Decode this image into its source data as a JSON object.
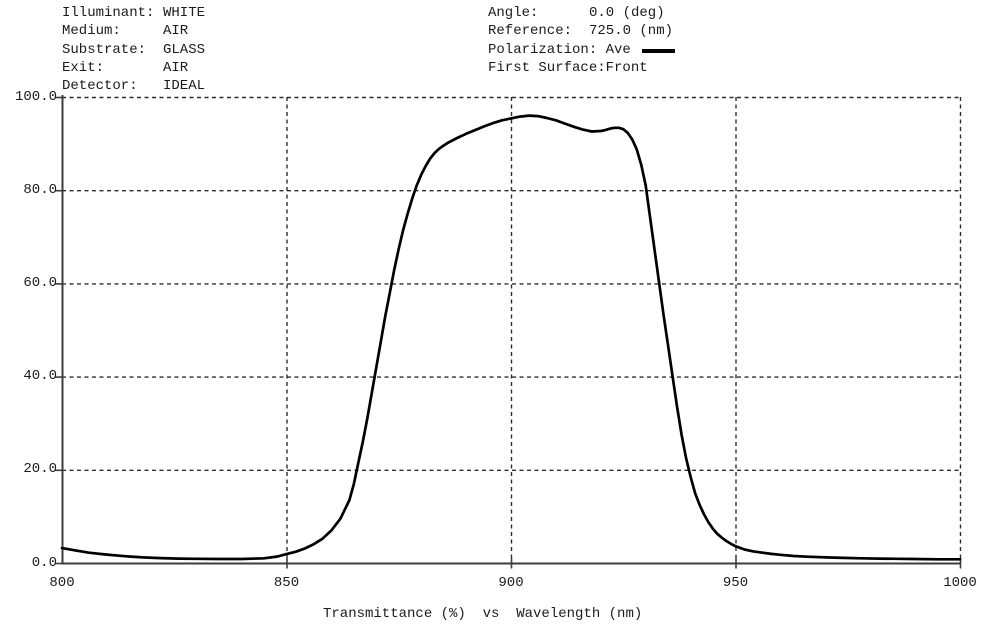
{
  "header_left": {
    "rows": [
      {
        "label": "Illuminant:",
        "value": "WHITE"
      },
      {
        "label": "Medium:",
        "value": "AIR"
      },
      {
        "label": "Substrate:",
        "value": "GLASS"
      },
      {
        "label": "Exit:",
        "value": "AIR"
      },
      {
        "label": "Detector:",
        "value": "IDEAL"
      }
    ]
  },
  "header_right": {
    "rows": [
      {
        "label": "Angle:",
        "value": "0.0 (deg)"
      },
      {
        "label": "Reference:",
        "value": "725.0 (nm)"
      },
      {
        "label": "Polarization: ",
        "value": "Ave",
        "swatch": true
      },
      {
        "label": "First Surface:",
        "value": "Front"
      }
    ]
  },
  "colors": {
    "background": "#ffffff",
    "curve": "#000000",
    "grid": "#2e2e2e",
    "axis": "#3d3d3d",
    "text": "#1c1c1c"
  },
  "chart_data": {
    "type": "line",
    "title": "Transmittance (%)  vs  Wavelength (nm)",
    "xlabel": "Wavelength (nm)",
    "ylabel": "Transmittance (%)",
    "xlim": [
      800,
      1000
    ],
    "ylim": [
      0,
      100
    ],
    "x_ticks": [
      800,
      850,
      900,
      950,
      1000
    ],
    "x_tick_labels": [
      "800",
      "850",
      "900",
      "950",
      "1000"
    ],
    "y_ticks": [
      0,
      20,
      40,
      60,
      80,
      100
    ],
    "y_tick_labels": [
      "0.0",
      "20.0",
      "40.0",
      "60.0",
      "80.0",
      "100.0"
    ],
    "grid": "dashed",
    "legend_position": "header",
    "series": [
      {
        "name": "Ave",
        "x": [
          800,
          803,
          806,
          810,
          814,
          818,
          822,
          826,
          830,
          835,
          840,
          845,
          848,
          850,
          852,
          854,
          856,
          858,
          860,
          862,
          864,
          865,
          866,
          867,
          868,
          869,
          870,
          871,
          872,
          873,
          874,
          875,
          876,
          877,
          878,
          879,
          880,
          881,
          882,
          883,
          884,
          885,
          886,
          888,
          890,
          892,
          894,
          896,
          898,
          900,
          902,
          904,
          906,
          908,
          910,
          912,
          914,
          916,
          918,
          920,
          921,
          922,
          923,
          924,
          925,
          926,
          927,
          928,
          929,
          930,
          931,
          932,
          933,
          934,
          935,
          936,
          937,
          938,
          939,
          940,
          941,
          942,
          943,
          944,
          945,
          946,
          947,
          948,
          949,
          950,
          952,
          954,
          956,
          958,
          960,
          963,
          966,
          970,
          974,
          978,
          982,
          986,
          990,
          995,
          1000
        ],
        "y": [
          3.2,
          2.7,
          2.2,
          1.8,
          1.45,
          1.2,
          1.05,
          0.95,
          0.9,
          0.85,
          0.85,
          1.0,
          1.4,
          1.9,
          2.4,
          3.1,
          4.0,
          5.2,
          7.0,
          9.5,
          13.5,
          17,
          21.5,
          26,
          31,
          36.5,
          42,
          47.5,
          53,
          58,
          63,
          67.5,
          71.5,
          75,
          78.2,
          81,
          83.3,
          85.2,
          86.8,
          88,
          88.9,
          89.6,
          90.2,
          91.2,
          92.1,
          92.9,
          93.7,
          94.4,
          95.0,
          95.4,
          95.8,
          96.0,
          95.9,
          95.5,
          95.0,
          94.3,
          93.6,
          93.0,
          92.6,
          92.7,
          92.9,
          93.2,
          93.4,
          93.4,
          93.1,
          92.3,
          90.9,
          88.8,
          85.5,
          81,
          74,
          67,
          60,
          53,
          46.5,
          40,
          33.5,
          27.5,
          22.5,
          18.5,
          15,
          12.5,
          10.4,
          8.7,
          7.3,
          6.2,
          5.4,
          4.7,
          4.1,
          3.6,
          2.9,
          2.5,
          2.2,
          1.95,
          1.75,
          1.5,
          1.35,
          1.2,
          1.1,
          1.0,
          0.95,
          0.9,
          0.85,
          0.8,
          0.8
        ]
      }
    ]
  }
}
